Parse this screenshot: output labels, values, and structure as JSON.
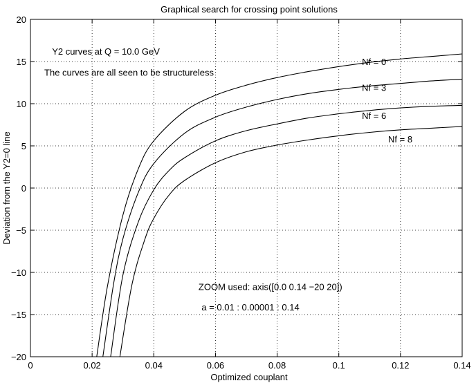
{
  "chart_data": {
    "type": "line",
    "title": "Graphical search for crossing point solutions",
    "xlabel": "Optimized couplant",
    "ylabel": "Deviation from the Y2=0 line",
    "xlim": [
      0,
      0.14
    ],
    "ylim": [
      -20,
      20
    ],
    "x_ticks": [
      0,
      0.02,
      0.04,
      0.06,
      0.08,
      0.1,
      0.12,
      0.14
    ],
    "x_tick_labels": [
      "0",
      "0.02",
      "0.04",
      "0.06",
      "0.08",
      "0.1",
      "0.12",
      "0.14"
    ],
    "y_ticks": [
      -20,
      -15,
      -10,
      -5,
      0,
      5,
      10,
      15,
      20
    ],
    "y_tick_labels": [
      "−20",
      "−15",
      "−10",
      "−5",
      "0",
      "5",
      "10",
      "15",
      "20"
    ],
    "grid": true,
    "grid_style": "dotted",
    "line_color": "#000000",
    "series": [
      {
        "name": "Nf = 0",
        "x": [
          0.0215,
          0.025,
          0.03,
          0.035,
          0.04,
          0.05,
          0.06,
          0.07,
          0.08,
          0.09,
          0.1,
          0.11,
          0.12,
          0.13,
          0.14
        ],
        "y": [
          -20,
          -11.6,
          -3.2,
          2.3,
          5.6,
          9.1,
          11.0,
          12.2,
          13.1,
          13.8,
          14.4,
          14.9,
          15.3,
          15.6,
          15.9
        ]
      },
      {
        "name": "Nf = 3",
        "x": [
          0.0235,
          0.027,
          0.03,
          0.035,
          0.04,
          0.05,
          0.06,
          0.07,
          0.08,
          0.09,
          0.1,
          0.11,
          0.12,
          0.13,
          0.14
        ],
        "y": [
          -20,
          -11.3,
          -6.0,
          -0.5,
          2.9,
          6.5,
          8.4,
          9.6,
          10.5,
          11.2,
          11.7,
          12.1,
          12.4,
          12.7,
          12.9
        ]
      },
      {
        "name": "Nf = 6",
        "x": [
          0.026,
          0.03,
          0.035,
          0.04,
          0.045,
          0.05,
          0.06,
          0.07,
          0.08,
          0.09,
          0.1,
          0.11,
          0.12,
          0.13,
          0.14
        ],
        "y": [
          -20,
          -10.3,
          -4.0,
          -0.2,
          2.1,
          3.6,
          5.6,
          6.8,
          7.6,
          8.3,
          8.8,
          9.2,
          9.5,
          9.7,
          9.8
        ]
      },
      {
        "name": "Nf = 8",
        "x": [
          0.029,
          0.033,
          0.037,
          0.04,
          0.045,
          0.05,
          0.06,
          0.07,
          0.08,
          0.09,
          0.1,
          0.11,
          0.12,
          0.13,
          0.14
        ],
        "y": [
          -20,
          -11.3,
          -6.2,
          -3.6,
          -0.8,
          0.9,
          3.0,
          4.3,
          5.1,
          5.7,
          6.2,
          6.6,
          6.9,
          7.1,
          7.3
        ]
      }
    ],
    "curve_labels": [
      {
        "text": "Nf = 0",
        "x": 0.1075,
        "y": 14.6
      },
      {
        "text": "Nf = 3",
        "x": 0.1075,
        "y": 11.5
      },
      {
        "text": "Nf = 6",
        "x": 0.1075,
        "y": 8.2
      },
      {
        "text": "Nf = 8",
        "x": 0.116,
        "y": 5.4
      }
    ],
    "annotations": [
      {
        "text": "Y2 curves at Q = 10.0 GeV",
        "x": 0.007,
        "y": 15.8
      },
      {
        "text": "The curves are all seen to be structureless",
        "x": 0.0045,
        "y": 13.3
      },
      {
        "text": "ZOOM used: axis([0.0 0.14 −20 20])",
        "x": 0.0545,
        "y": -12.1
      },
      {
        "text": "a = 0.01 : 0.00001 : 0.14",
        "x": 0.0555,
        "y": -14.5
      }
    ]
  }
}
